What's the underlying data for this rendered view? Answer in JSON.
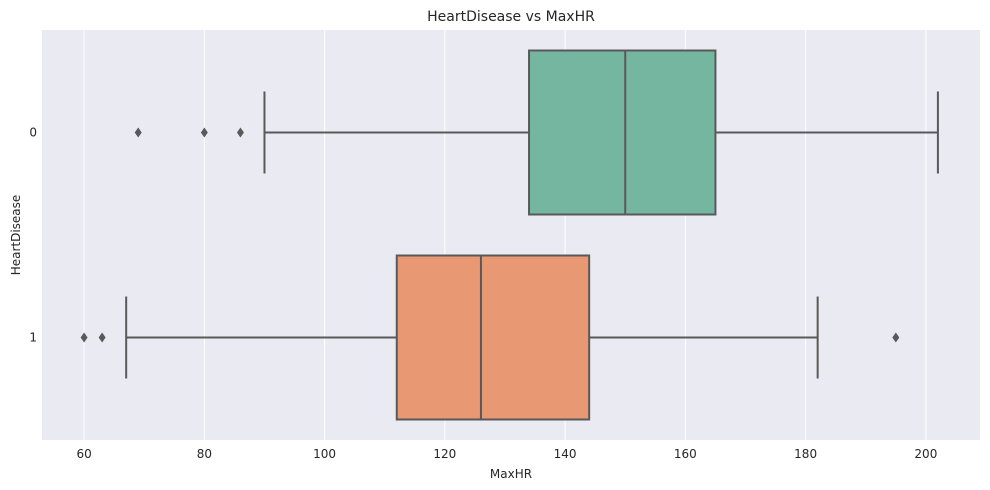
{
  "chart_data": {
    "type": "boxplot",
    "orientation": "horizontal",
    "title": "HeartDisease vs MaxHR",
    "xlabel": "MaxHR",
    "ylabel": "HeartDisease",
    "xlim": [
      53,
      209
    ],
    "xticks": [
      60,
      80,
      100,
      120,
      140,
      160,
      180,
      200
    ],
    "grid": true,
    "background": "#eaeaf2",
    "groups": [
      {
        "category": "0",
        "whisker_low": 90,
        "q1": 134,
        "median": 150,
        "q3": 165,
        "whisker_high": 202,
        "outliers": [
          69,
          80,
          86
        ],
        "color": "#75b6a1"
      },
      {
        "category": "1",
        "whisker_low": 67,
        "q1": 112,
        "median": 126,
        "q3": 144,
        "whisker_high": 182,
        "outliers": [
          60,
          63,
          195
        ],
        "color": "#e99874"
      }
    ],
    "line_color": "#595959"
  }
}
